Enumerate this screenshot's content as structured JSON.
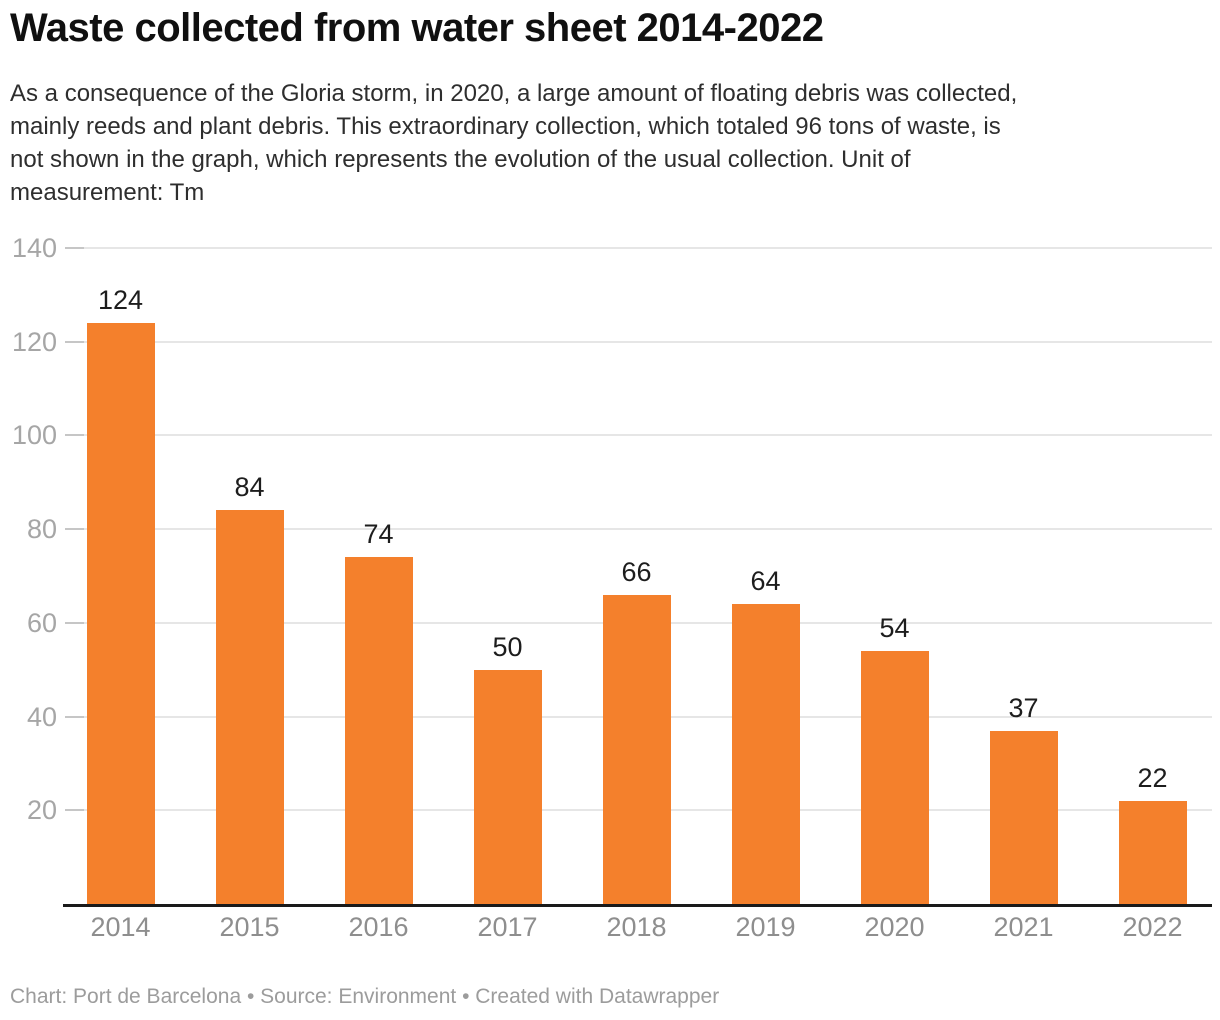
{
  "header": {
    "title": "Waste collected from water sheet 2014-2022",
    "description_lines": [
      "As a consequence of the Gloria storm, in 2020, a large amount of floating debris was collected,",
      "mainly reeds and plant debris. This extraordinary collection, which totaled 96 tons of waste, is",
      "not shown in the graph, which represents the evolution of the usual collection. Unit of",
      "measurement: Tm"
    ]
  },
  "chart_data": {
    "type": "bar",
    "title": "Waste collected from water sheet 2014-2022",
    "categories": [
      "2014",
      "2015",
      "2016",
      "2017",
      "2018",
      "2019",
      "2020",
      "2021",
      "2022"
    ],
    "values": [
      124,
      84,
      74,
      50,
      66,
      64,
      54,
      37,
      22
    ],
    "unit": "Tm",
    "xlabel": "",
    "ylabel": "",
    "ylim": [
      0,
      140
    ],
    "yticks": [
      20,
      40,
      60,
      80,
      100,
      120,
      140
    ],
    "grid": true,
    "legend": "none",
    "value_labels": true
  },
  "footer": {
    "text": "Chart: Port de Barcelona • Source: Environment • Created with Datawrapper"
  },
  "colors": {
    "background": "#ffffff",
    "bar": "#f4802c",
    "axis_line": "#1a1a1a",
    "gridline": "#e6e6e6",
    "tick_dash": "#c6c6c6",
    "y_tick_label": "#a6a6a6",
    "x_tick_label": "#8e8e8e",
    "value_label": "#1d1d1d",
    "title": "#101010",
    "description": "#2e2e2e",
    "footer": "#9c9c9c"
  }
}
